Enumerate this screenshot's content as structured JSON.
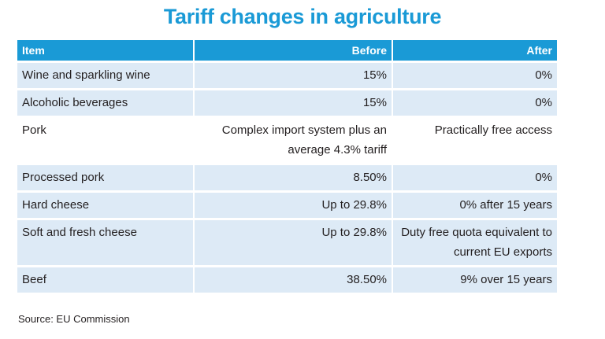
{
  "chart_data": {
    "type": "table",
    "title": "Tariff changes in agriculture",
    "columns": [
      "Item",
      "Before",
      "After"
    ],
    "rows": [
      {
        "item": "Wine and sparkling wine",
        "before": "15%",
        "after": "0%"
      },
      {
        "item": "Alcoholic beverages",
        "before": "15%",
        "after": "0%"
      },
      {
        "item": "Pork",
        "before": "Complex import system plus an average 4.3% tariff",
        "after": "Practically free access"
      },
      {
        "item": "Processed pork",
        "before": "8.50%",
        "after": "0%"
      },
      {
        "item": "Hard cheese",
        "before": "Up to 29.8%",
        "after": "0% after 15 years"
      },
      {
        "item": "Soft and fresh cheese",
        "before": "Up to 29.8%",
        "after": "Duty free quota equivalent to current EU exports"
      },
      {
        "item": "Beef",
        "before": "38.50%",
        "after": "9% over 15 years"
      }
    ],
    "source": "Source: EU Commission"
  },
  "colors": {
    "accent": "#1a9ad6",
    "row_shade": "#ddeaf6"
  }
}
